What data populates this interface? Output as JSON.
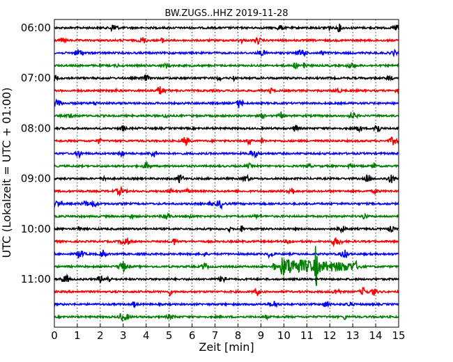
{
  "chart_data": {
    "type": "line",
    "title": "BW.ZUGS..HHZ 2019-11-28",
    "xlabel": "Zeit  [min]",
    "ylabel": "UTC (Lokalzeit = UTC + 01:00)",
    "xlim": [
      0,
      15
    ],
    "x_ticks": [
      "0",
      "1",
      "2",
      "3",
      "4",
      "5",
      "6",
      "7",
      "8",
      "9",
      "10",
      "11",
      "12",
      "13",
      "14",
      "15"
    ],
    "y_ticks": [
      "06:00",
      "07:00",
      "08:00",
      "09:00",
      "10:00",
      "11:00"
    ],
    "grid": {
      "vertical_dotted": true
    },
    "trace_interval_minutes": 15,
    "traces_start": "06:00",
    "color_cycle": [
      "#000000",
      "#ff0000",
      "#0000ff",
      "#008000"
    ],
    "series": [
      {
        "start": "06:00",
        "color": "#000000"
      },
      {
        "start": "06:15",
        "color": "#ff0000"
      },
      {
        "start": "06:30",
        "color": "#0000ff"
      },
      {
        "start": "06:45",
        "color": "#008000"
      },
      {
        "start": "07:00",
        "color": "#000000"
      },
      {
        "start": "07:15",
        "color": "#ff0000"
      },
      {
        "start": "07:30",
        "color": "#0000ff"
      },
      {
        "start": "07:45",
        "color": "#008000"
      },
      {
        "start": "08:00",
        "color": "#000000"
      },
      {
        "start": "08:15",
        "color": "#ff0000"
      },
      {
        "start": "08:30",
        "color": "#0000ff"
      },
      {
        "start": "08:45",
        "color": "#008000"
      },
      {
        "start": "09:00",
        "color": "#000000"
      },
      {
        "start": "09:15",
        "color": "#ff0000"
      },
      {
        "start": "09:30",
        "color": "#0000ff"
      },
      {
        "start": "09:45",
        "color": "#008000"
      },
      {
        "start": "10:00",
        "color": "#000000"
      },
      {
        "start": "10:15",
        "color": "#ff0000"
      },
      {
        "start": "10:30",
        "color": "#0000ff"
      },
      {
        "start": "10:45",
        "color": "#008000",
        "events": [
          {
            "from_min": 9.8,
            "to_min": 13.2
          },
          {
            "at_min": 11.4
          }
        ]
      },
      {
        "start": "11:00",
        "color": "#000000"
      },
      {
        "start": "11:15",
        "color": "#ff0000"
      },
      {
        "start": "11:30",
        "color": "#0000ff"
      },
      {
        "start": "11:45",
        "color": "#008000"
      }
    ]
  }
}
